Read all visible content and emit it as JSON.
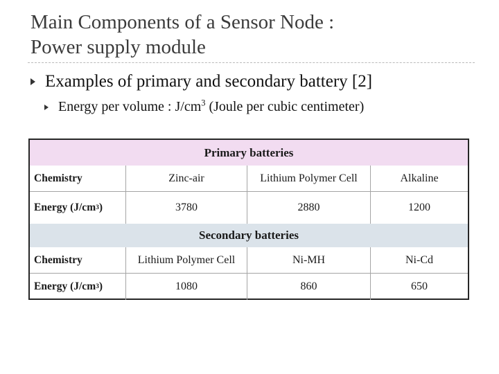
{
  "slide": {
    "title_line1": "Main Components of a Sensor Node :",
    "title_line2": "Power supply module",
    "bullet1": "Examples of primary and secondary battery [2]",
    "bullet2_prefix": "Energy per volume : J/cm",
    "bullet2_sup": "3",
    "bullet2_suffix": " (Joule per cubic centimeter)"
  },
  "table": {
    "primary_header": "Primary batteries",
    "secondary_header": "Secondary batteries",
    "chemistry_label": "Chemistry",
    "energy_label_prefix": "Energy (J/cm",
    "energy_label_sup": "3",
    "energy_label_suffix": ")",
    "primary": {
      "chemistry": [
        "Zinc-air",
        "Lithium Polymer Cell",
        "Alkaline"
      ],
      "energy": [
        "3780",
        "2880",
        "1200"
      ]
    },
    "secondary": {
      "chemistry": [
        "Lithium Polymer Cell",
        "Ni-MH",
        "Ni-Cd"
      ],
      "energy": [
        "1080",
        "860",
        "650"
      ]
    }
  },
  "colors": {
    "primary_band": "#f2dcf1",
    "secondary_band": "#dbe3ea"
  }
}
